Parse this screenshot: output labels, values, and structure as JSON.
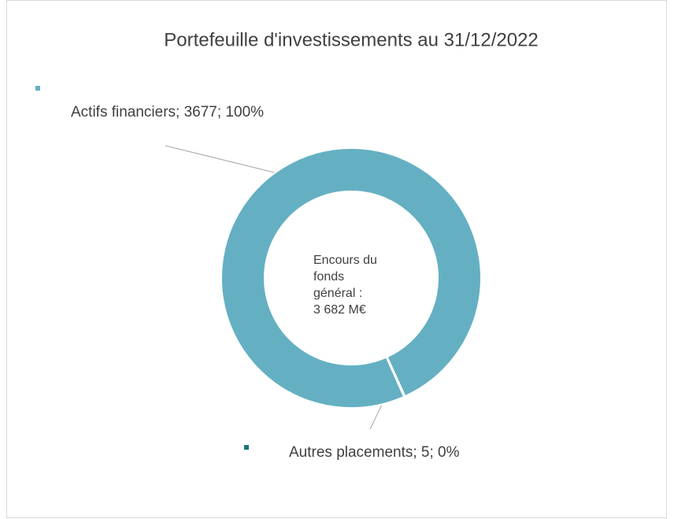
{
  "chart_data": {
    "type": "donut",
    "title": "Portefeuille d'investissements au 31/12/2022",
    "values": [
      3677,
      5
    ],
    "value_labels": [
      "Actifs financiers; 3677; 100%",
      "Autres placements; 5; 0%"
    ],
    "colors": [
      "#64b0c2",
      "#1f6f7a"
    ],
    "center_text": [
      "Encours du",
      "fonds",
      "général :",
      "3 682 M€"
    ]
  }
}
